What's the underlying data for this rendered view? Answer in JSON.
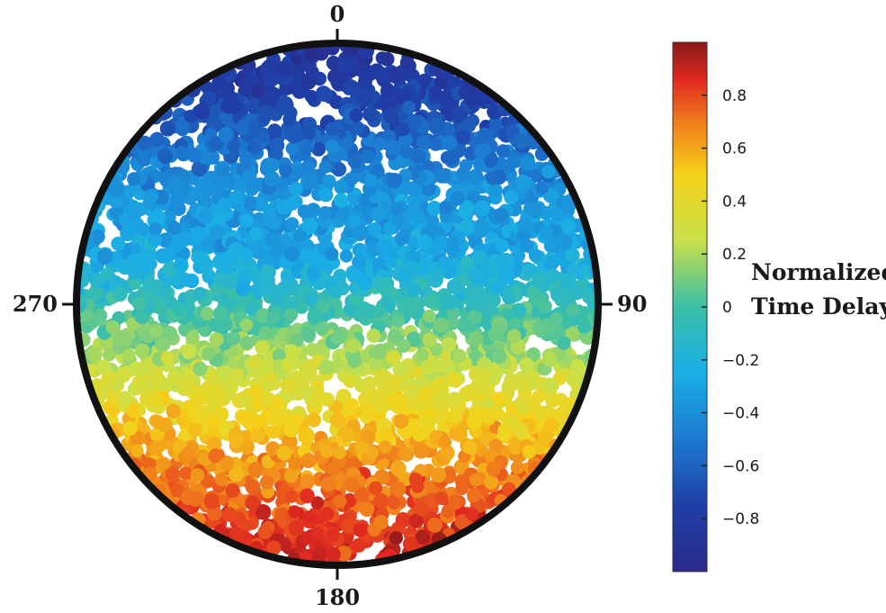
{
  "chart_data": {
    "type": "scatter",
    "coordinate_system": "polar-disk",
    "title": "",
    "angle_labels": [
      "0",
      "90",
      "180",
      "270"
    ],
    "colorbar": {
      "label_lines": [
        "Normalized",
        "Time Delay"
      ],
      "range": [
        -1,
        1
      ],
      "ticks": [
        0.8,
        0.6,
        0.4,
        0.2,
        0,
        -0.2,
        -0.4,
        -0.6,
        -0.8
      ],
      "tick_labels": [
        "0.8",
        "0.6",
        "0.4",
        "0.2",
        "0",
        "−0.2",
        "−0.4",
        "−0.6",
        "−0.8"
      ],
      "colormap": "jet"
    },
    "value_profile": {
      "description": "values vary from top (0) to bottom (180) of disk",
      "rel_y": [
        -1.0,
        -0.8,
        -0.6,
        -0.4,
        -0.2,
        0.0,
        0.2,
        0.4,
        0.6,
        0.8,
        1.0
      ],
      "value": [
        -0.85,
        -0.75,
        -0.55,
        -0.35,
        -0.3,
        -0.05,
        0.2,
        0.45,
        0.65,
        0.8,
        0.9
      ]
    }
  },
  "colors": {
    "circle_border": "#111111",
    "background": "#ffffff"
  }
}
